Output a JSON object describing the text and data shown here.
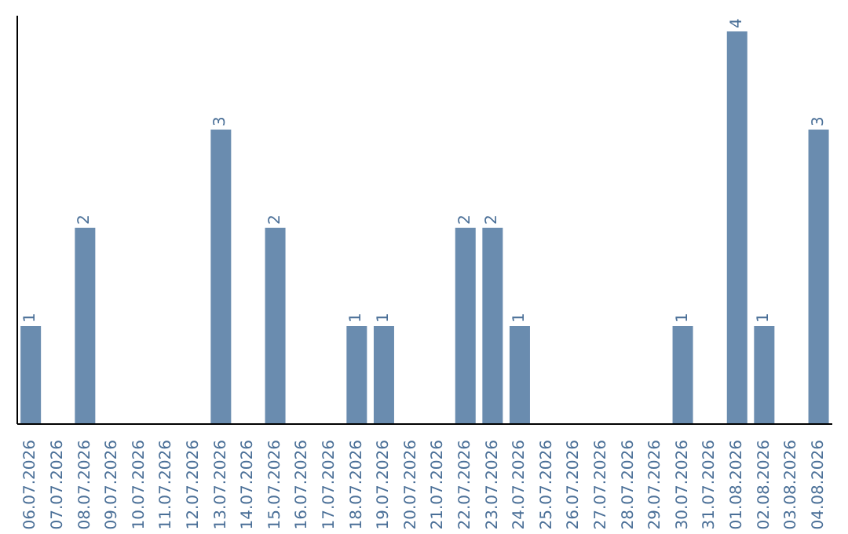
{
  "chart_data": {
    "type": "bar",
    "categories": [
      "06.07.2026",
      "07.07.2026",
      "08.07.2026",
      "09.07.2026",
      "10.07.2026",
      "11.07.2026",
      "12.07.2026",
      "13.07.2026",
      "14.07.2026",
      "15.07.2026",
      "16.07.2026",
      "17.07.2026",
      "18.07.2026",
      "19.07.2026",
      "20.07.2026",
      "21.07.2026",
      "22.07.2026",
      "23.07.2026",
      "24.07.2026",
      "25.07.2026",
      "26.07.2026",
      "27.07.2026",
      "28.07.2026",
      "29.07.2026",
      "30.07.2026",
      "31.07.2026",
      "01.08.2026",
      "02.08.2026",
      "03.08.2026",
      "04.08.2026"
    ],
    "values": [
      1,
      0,
      2,
      0,
      0,
      0,
      0,
      3,
      0,
      2,
      0,
      0,
      1,
      1,
      0,
      0,
      2,
      2,
      1,
      0,
      0,
      0,
      0,
      0,
      1,
      0,
      4,
      1,
      0,
      3
    ],
    "value_labels": [
      "1",
      null,
      "2",
      null,
      null,
      null,
      null,
      "3",
      null,
      "2",
      null,
      null,
      "1",
      "1",
      null,
      null,
      "2",
      "2",
      "1",
      null,
      null,
      null,
      null,
      null,
      "1",
      null,
      "4",
      "1",
      null,
      "3"
    ],
    "color": "#6a8caf",
    "tick_labels": "x"
  }
}
